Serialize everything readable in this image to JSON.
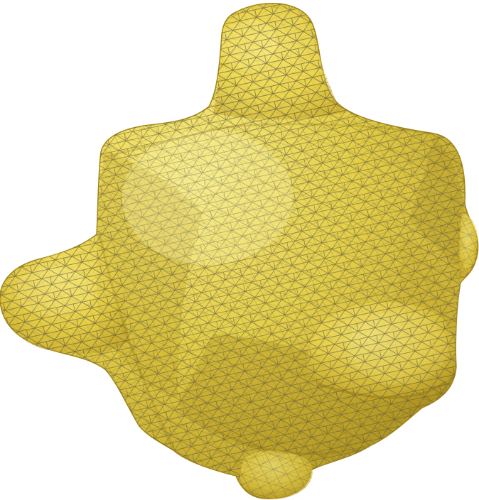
{
  "scene": {
    "subject": "triangulated-yellow-blob-mesh",
    "colors": {
      "background": "#ffffff",
      "surface_light": "#fbf07a",
      "surface_mid": "#f2dc4e",
      "surface_dark": "#b79a22",
      "surface_shadow": "#8d7418",
      "wireframe": "#5e5a3a"
    }
  }
}
